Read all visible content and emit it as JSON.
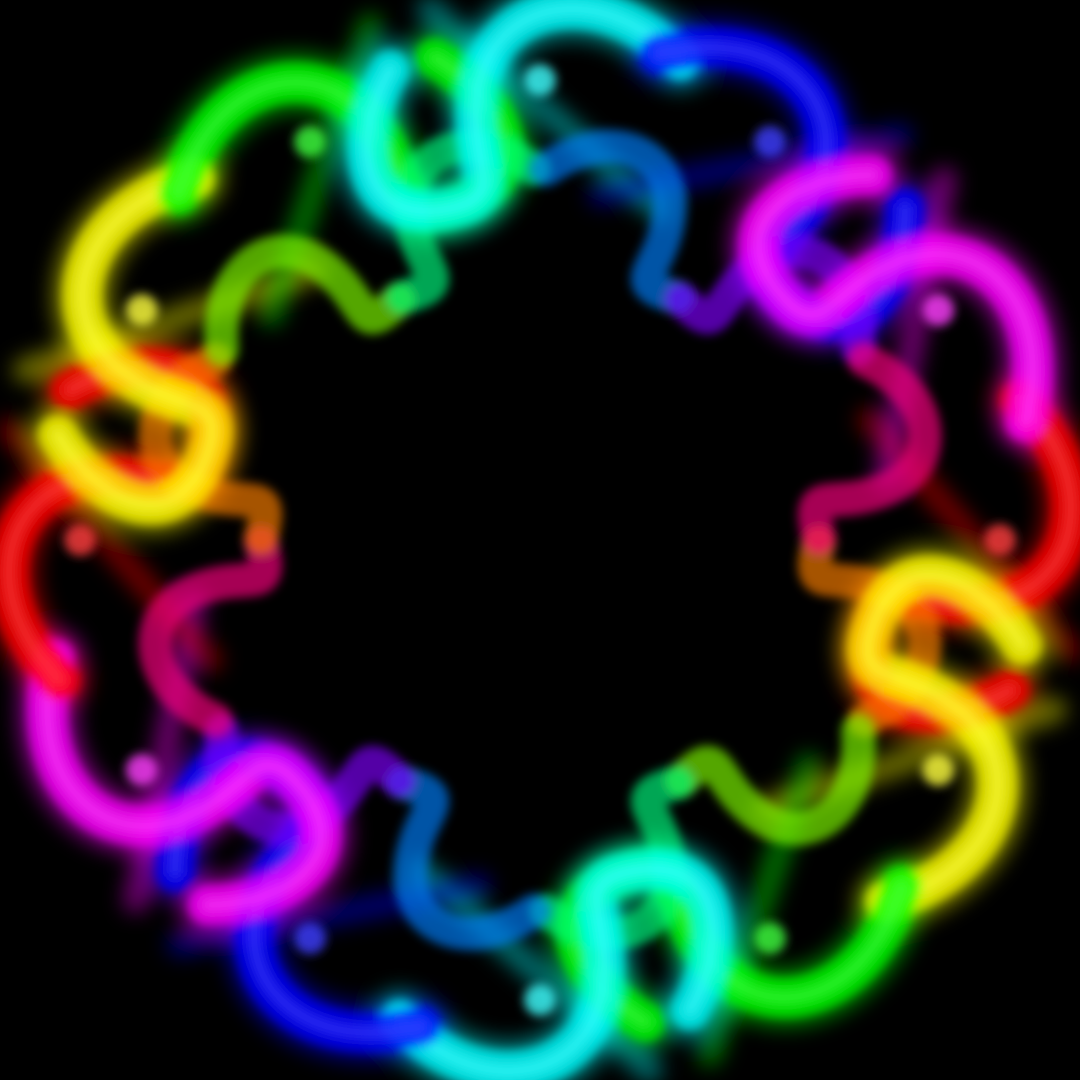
{
  "artwork": {
    "background_color": "#000000",
    "symmetry_folds": 12,
    "mirrored": true,
    "hue_cycles_per_turn": 2,
    "palette": [
      "#ff0033",
      "#ff00cc",
      "#8000ff",
      "#0050ff",
      "#00b4ff",
      "#00ff60",
      "#ffd000",
      "#ff5000"
    ],
    "blur": "soft glow"
  }
}
